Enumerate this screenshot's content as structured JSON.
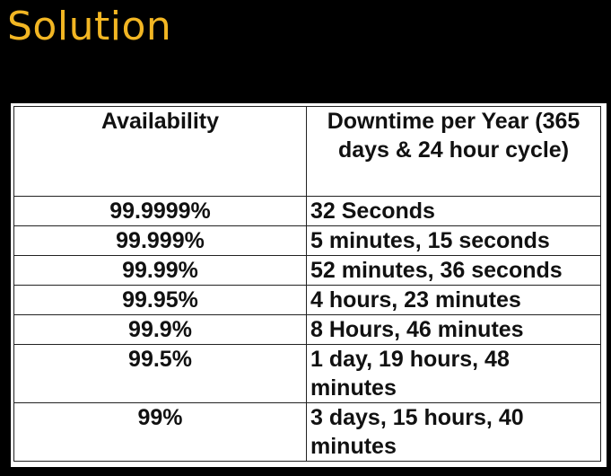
{
  "slide": {
    "title": "Solution"
  },
  "table": {
    "headers": {
      "availability": "Availability",
      "downtime": "Downtime per Year (365 days & 24 hour cycle)"
    },
    "rows": [
      {
        "availability": "99.9999%",
        "downtime": "32 Seconds"
      },
      {
        "availability": "99.999%",
        "downtime": "5 minutes, 15 seconds"
      },
      {
        "availability": "99.99%",
        "downtime": "52 minutes, 36 seconds"
      },
      {
        "availability": "99.95%",
        "downtime": "4 hours, 23 minutes"
      },
      {
        "availability": "99.9%",
        "downtime": "8 Hours, 46 minutes"
      },
      {
        "availability": "99.5%",
        "downtime": "1 day, 19 hours, 48 minutes"
      },
      {
        "availability": "99%",
        "downtime": "3 days, 15 hours, 40 minutes"
      }
    ]
  },
  "colors": {
    "background": "#000000",
    "title": "#f2b623",
    "table_bg": "#ffffff",
    "text": "#111111"
  }
}
